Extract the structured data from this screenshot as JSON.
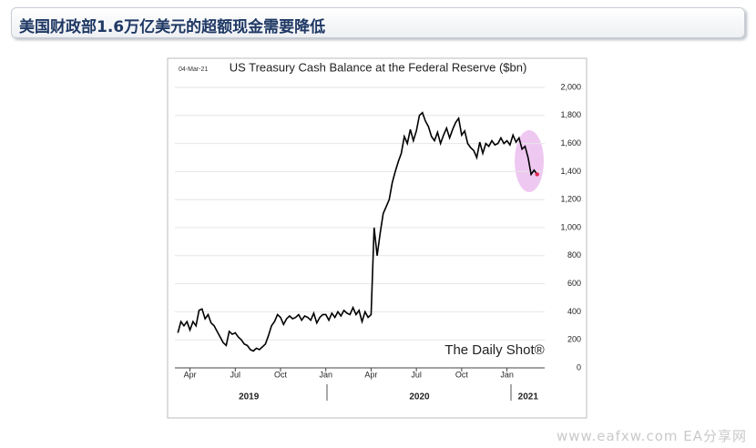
{
  "header": {
    "title": "美国财政部1.6万亿美元的超额现金需要降低"
  },
  "watermark": "www.eafxw.com  EA分享网",
  "chart_data": {
    "type": "line",
    "title": "US Treasury Cash Balance at the Federal Reserve ($bn)",
    "date": "04-Mar-21",
    "source_logo": "The Daily Shot®",
    "xlim": [
      2,
      26.5
    ],
    "xticks": [
      {
        "value": 3,
        "label": "Apr"
      },
      {
        "value": 6,
        "label": "Jul"
      },
      {
        "value": 9,
        "label": "Oct"
      },
      {
        "value": 12,
        "label": "Jan"
      },
      {
        "value": 15,
        "label": "Apr"
      },
      {
        "value": 18,
        "label": "Jul"
      },
      {
        "value": 21,
        "label": "Oct"
      },
      {
        "value": 24,
        "label": "Jan"
      }
    ],
    "year_labels": [
      {
        "value": 6.9,
        "label": "2019"
      },
      {
        "value": 18.2,
        "label": "2020"
      },
      {
        "value": 25.4,
        "label": "2021"
      }
    ],
    "ylim": [
      0,
      2000
    ],
    "yticks": [
      0,
      200,
      400,
      600,
      800,
      {
        "value": 1000,
        "label": "1,000"
      },
      {
        "value": 1200,
        "label": "1,200"
      },
      {
        "value": 1400,
        "label": "1,400"
      },
      {
        "value": 1600,
        "label": "1,600"
      },
      {
        "value": 1800,
        "label": "1,800"
      },
      {
        "value": 2000,
        "label": "2,000"
      }
    ],
    "grid": true,
    "end_marker_color": "#e0284f",
    "x": [
      2.2,
      2.4,
      2.6,
      2.8,
      3.0,
      3.2,
      3.4,
      3.6,
      3.8,
      4.0,
      4.2,
      4.4,
      4.6,
      4.8,
      5.0,
      5.2,
      5.4,
      5.6,
      5.8,
      6.0,
      6.2,
      6.4,
      6.6,
      6.8,
      7.0,
      7.2,
      7.4,
      7.6,
      7.8,
      8.0,
      8.2,
      8.4,
      8.6,
      8.8,
      9.0,
      9.2,
      9.4,
      9.6,
      9.8,
      10.0,
      10.2,
      10.4,
      10.6,
      10.8,
      11.0,
      11.2,
      11.4,
      11.6,
      11.8,
      12.0,
      12.2,
      12.4,
      12.6,
      12.8,
      13.0,
      13.2,
      13.4,
      13.6,
      13.8,
      14.0,
      14.2,
      14.4,
      14.6,
      14.8,
      15.0,
      15.2,
      15.4,
      15.6,
      15.8,
      16.0,
      16.2,
      16.4,
      16.6,
      16.8,
      17.0,
      17.2,
      17.4,
      17.6,
      17.8,
      18.0,
      18.2,
      18.4,
      18.6,
      18.8,
      19.0,
      19.2,
      19.4,
      19.6,
      19.8,
      20.0,
      20.2,
      20.4,
      20.6,
      20.8,
      21.0,
      21.2,
      21.4,
      21.6,
      21.8,
      22.0,
      22.2,
      22.4,
      22.6,
      22.8,
      23.0,
      23.2,
      23.4,
      23.6,
      23.8,
      24.0,
      24.2,
      24.4,
      24.6,
      24.8,
      25.0,
      25.2,
      25.4,
      25.6,
      25.8,
      26.0
    ],
    "series": [
      {
        "color": "#000000",
        "values": [
          250,
          330,
          300,
          330,
          270,
          330,
          300,
          410,
          420,
          350,
          380,
          320,
          300,
          260,
          220,
          180,
          160,
          260,
          240,
          250,
          220,
          200,
          170,
          160,
          130,
          120,
          140,
          130,
          150,
          170,
          230,
          300,
          330,
          380,
          360,
          310,
          350,
          370,
          350,
          360,
          380,
          340,
          370,
          360,
          340,
          390,
          320,
          360,
          380,
          380,
          340,
          390,
          360,
          400,
          370,
          410,
          390,
          380,
          430,
          380,
          410,
          330,
          400,
          360,
          380,
          1000,
          800,
          960,
          1100,
          1150,
          1200,
          1320,
          1400,
          1470,
          1530,
          1650,
          1600,
          1700,
          1620,
          1690,
          1800,
          1820,
          1760,
          1720,
          1650,
          1620,
          1680,
          1600,
          1660,
          1710,
          1640,
          1700,
          1750,
          1780,
          1660,
          1690,
          1600,
          1570,
          1550,
          1500,
          1610,
          1530,
          1600,
          1580,
          1620,
          1590,
          1600,
          1640,
          1600,
          1620,
          1590,
          1660,
          1610,
          1640,
          1560,
          1580,
          1500,
          1380,
          1410,
          1380
        ]
      }
    ]
  }
}
